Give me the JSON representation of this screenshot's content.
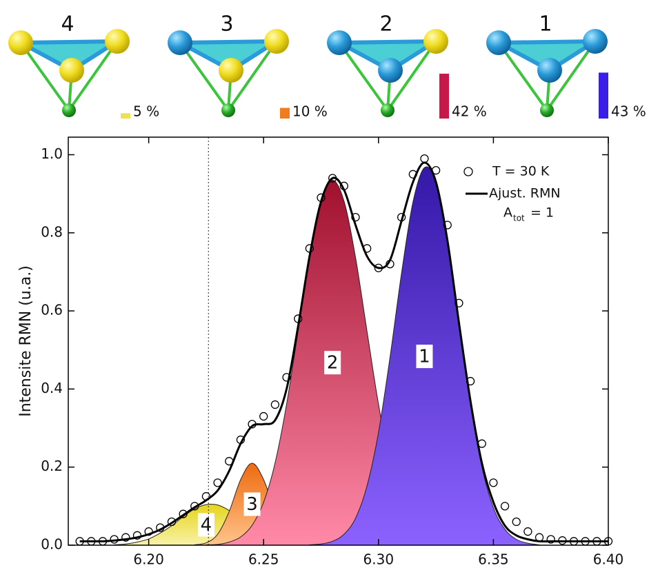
{
  "chart_data": [
    {
      "type": "tetra-bar",
      "categories": [
        "4",
        "3",
        "2",
        "1"
      ],
      "values": [
        5,
        10,
        42,
        43
      ],
      "value_labels": [
        "5 %",
        "10 %",
        "42 %",
        "43 %"
      ],
      "colors": [
        "#eee055",
        "#f07c1c",
        "#c8184a",
        "#3a1ee8"
      ]
    },
    {
      "type": "line",
      "y_label": "Intensite RMN (u.a.)",
      "xlim": [
        6.165,
        6.4
      ],
      "ylim": [
        0,
        1.045
      ],
      "xticks": [
        {
          "value": 6.2,
          "label": "6.20"
        },
        6.25,
        {
          "value": 6.3,
          "label": "6.30"
        },
        6.35,
        {
          "value": 6.4,
          "label": "6.40"
        }
      ],
      "yticks": [
        {
          "value": 0,
          "label": "0.0"
        },
        0.2,
        0.4,
        0.6,
        0.8,
        {
          "value": 1,
          "label": "1.0"
        }
      ],
      "reference_x": 6.226,
      "legend": "upper right",
      "x": [
        6.17,
        6.175,
        6.18,
        6.185,
        6.19,
        6.195,
        6.2,
        6.205,
        6.21,
        6.215,
        6.22,
        6.225,
        6.23,
        6.235,
        6.24,
        6.245,
        6.25,
        6.255,
        6.26,
        6.265,
        6.27,
        6.275,
        6.28,
        6.285,
        6.29,
        6.295,
        6.3,
        6.305,
        6.31,
        6.315,
        6.32,
        6.325,
        6.33,
        6.335,
        6.34,
        6.345,
        6.35,
        6.355,
        6.36,
        6.365,
        6.37,
        6.375,
        6.38,
        6.385,
        6.39,
        6.395,
        6.4
      ],
      "series": [
        {
          "name": "T = 30 K",
          "marker": "circle",
          "color": "#000000",
          "values": [
            0.01,
            0.01,
            0.01,
            0.015,
            0.02,
            0.025,
            0.035,
            0.045,
            0.06,
            0.08,
            0.1,
            0.125,
            0.16,
            0.215,
            0.27,
            0.31,
            0.33,
            0.36,
            0.43,
            0.58,
            0.76,
            0.89,
            0.94,
            0.92,
            0.84,
            0.76,
            0.71,
            0.72,
            0.84,
            0.95,
            0.99,
            0.96,
            0.82,
            0.62,
            0.42,
            0.26,
            0.16,
            0.1,
            0.06,
            0.035,
            0.02,
            0.015,
            0.012,
            0.01,
            0.01,
            0.01,
            0.01
          ]
        },
        {
          "name": "Ajust. RMN",
          "marker": "line",
          "color": "#000000",
          "values": [
            0.01,
            0.01,
            0.01,
            0.012,
            0.015,
            0.02,
            0.028,
            0.04,
            0.057,
            0.077,
            0.097,
            0.115,
            0.14,
            0.19,
            0.26,
            0.305,
            0.31,
            0.32,
            0.4,
            0.56,
            0.74,
            0.88,
            0.94,
            0.91,
            0.82,
            0.74,
            0.71,
            0.73,
            0.83,
            0.93,
            0.98,
            0.93,
            0.78,
            0.57,
            0.37,
            0.21,
            0.11,
            0.05,
            0.025,
            0.015,
            0.01,
            0.01,
            0.01,
            0.01,
            0.01,
            0.01,
            0.01
          ]
        }
      ],
      "annotation": {
        "text": "A",
        "sub": "tot",
        "suffix": "= 1"
      },
      "components": [
        {
          "label": "4",
          "colors": [
            "#e6d41c",
            "#f8f2a8"
          ],
          "x": [
            6.185,
            6.19,
            6.195,
            6.2,
            6.205,
            6.21,
            6.215,
            6.22,
            6.225,
            6.23,
            6.235,
            6.24,
            6.245,
            6.25,
            6.255,
            6.26,
            6.265,
            6.27
          ],
          "values": [
            0.001,
            0.003,
            0.008,
            0.016,
            0.031,
            0.05,
            0.073,
            0.093,
            0.104,
            0.103,
            0.089,
            0.068,
            0.046,
            0.027,
            0.014,
            0.007,
            0.003,
            0.001
          ]
        },
        {
          "label": "3",
          "colors": [
            "#ee6a10",
            "#ffc48a"
          ],
          "x": [
            6.22,
            6.225,
            6.23,
            6.235,
            6.24,
            6.245,
            6.25,
            6.255,
            6.26,
            6.265,
            6.27
          ],
          "values": [
            0.001,
            0.006,
            0.028,
            0.086,
            0.168,
            0.21,
            0.168,
            0.086,
            0.028,
            0.006,
            0.001
          ]
        },
        {
          "label": "2",
          "colors": [
            "#a0102e",
            "#ff8aa8"
          ],
          "x": [
            6.225,
            6.23,
            6.235,
            6.24,
            6.245,
            6.25,
            6.255,
            6.26,
            6.265,
            6.27,
            6.275,
            6.28,
            6.285,
            6.29,
            6.295,
            6.3,
            6.305,
            6.31,
            6.315,
            6.32,
            6.325,
            6.33,
            6.335
          ],
          "values": [
            0.001,
            0.002,
            0.008,
            0.021,
            0.051,
            0.11,
            0.211,
            0.361,
            0.548,
            0.737,
            0.881,
            0.935,
            0.881,
            0.737,
            0.548,
            0.361,
            0.211,
            0.11,
            0.051,
            0.021,
            0.008,
            0.002,
            0.001
          ]
        },
        {
          "label": "1",
          "colors": [
            "#3418a8",
            "#8c62ff"
          ],
          "x": [
            6.27,
            6.275,
            6.28,
            6.285,
            6.29,
            6.295,
            6.3,
            6.305,
            6.31,
            6.315,
            6.32,
            6.325,
            6.33,
            6.335,
            6.34,
            6.345,
            6.35,
            6.355,
            6.36,
            6.365,
            6.37
          ],
          "values": [
            0.001,
            0.003,
            0.01,
            0.028,
            0.069,
            0.152,
            0.289,
            0.481,
            0.696,
            0.879,
            0.967,
            0.928,
            0.776,
            0.565,
            0.36,
            0.2,
            0.096,
            0.041,
            0.015,
            0.005,
            0.001
          ]
        }
      ]
    }
  ]
}
